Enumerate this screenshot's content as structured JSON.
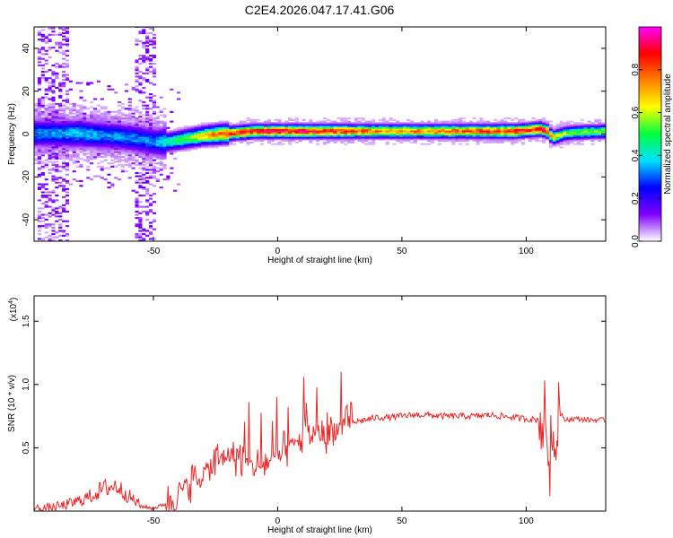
{
  "title": "C2E4.2026.047.17.41.G06",
  "chart_data": [
    {
      "type": "heatmap",
      "title": "C2E4.2026.047.17.41.G06",
      "xlabel": "Height of straight line (km)",
      "ylabel": "Frequency (Hz)",
      "xlim": [
        -98,
        132
      ],
      "ylim": [
        -50,
        50
      ],
      "x_ticks": [
        -50,
        0,
        50,
        100
      ],
      "y_ticks": [
        -40,
        -20,
        0,
        20,
        40
      ],
      "colorbar": {
        "label": "Normalized spectral amplitude",
        "range": [
          0.0,
          1.0
        ],
        "ticks": [
          "0.0",
          "0.2",
          "0.4",
          "0.6",
          "0.8"
        ],
        "colors": [
          "#ffffff",
          "#8000ff",
          "#0000ff",
          "#00e0ff",
          "#00ff40",
          "#ffff00",
          "#ff8000",
          "#ff0000",
          "#ff00ff"
        ]
      },
      "ridge": {
        "x": [
          -98,
          -90,
          -80,
          -70,
          -60,
          -50,
          -45,
          -40,
          -35,
          -30,
          -25,
          -20,
          -15,
          -10,
          -5,
          0,
          10,
          20,
          40,
          60,
          80,
          90,
          95,
          100,
          105,
          108,
          110,
          115,
          120,
          132
        ],
        "frequency": [
          0,
          0,
          0,
          -1,
          -2,
          -4,
          -4,
          -3,
          -2,
          -1,
          -0.5,
          0,
          0.5,
          1,
          1,
          1,
          1,
          1,
          1,
          1,
          1,
          1,
          1,
          1.5,
          2,
          1,
          -2,
          0,
          0.5,
          1
        ],
        "amplitude": [
          0.35,
          0.35,
          0.4,
          0.35,
          0.35,
          0.35,
          0.45,
          0.55,
          0.6,
          0.7,
          0.8,
          0.9,
          0.95,
          0.9,
          0.95,
          0.95,
          0.95,
          0.9,
          0.8,
          0.8,
          0.85,
          0.9,
          0.95,
          0.85,
          0.95,
          0.9,
          0.7,
          0.6,
          0.6,
          0.6
        ]
      }
    },
    {
      "type": "line",
      "xlabel": "Height of straight line (km)",
      "ylabel": "SNR (10 * v/v)",
      "y_multiplier": "(x10",
      "y_multiplier_exp": "4",
      "xlim": [
        -98,
        132
      ],
      "ylim": [
        0,
        1.7
      ],
      "x_ticks": [
        -50,
        0,
        50,
        100
      ],
      "y_ticks": [
        0.5,
        1.0,
        1.5
      ],
      "color": "#e8282a",
      "series": [
        {
          "x": [
            -98,
            -95,
            -90,
            -85,
            -80,
            -75,
            -70,
            -65,
            -60,
            -55,
            -50,
            -45,
            -40,
            -35,
            -30,
            -25,
            -20,
            -15,
            -10,
            -5,
            0,
            5,
            10,
            15,
            20,
            25,
            30,
            35,
            40,
            45,
            50,
            55,
            60,
            65,
            70,
            75,
            80,
            85,
            90,
            95,
            100,
            105,
            108,
            110,
            112,
            115,
            120,
            125,
            132
          ],
          "y": [
            0.02,
            0.02,
            0.03,
            0.05,
            0.08,
            0.12,
            0.18,
            0.2,
            0.12,
            0.04,
            0.02,
            0.06,
            0.15,
            0.22,
            0.3,
            0.38,
            0.45,
            0.42,
            0.35,
            0.38,
            0.42,
            0.5,
            0.58,
            0.62,
            0.62,
            0.66,
            0.7,
            0.72,
            0.74,
            0.74,
            0.75,
            0.76,
            0.76,
            0.75,
            0.75,
            0.75,
            0.75,
            0.76,
            0.75,
            0.74,
            0.73,
            0.72,
            0.7,
            0.4,
            0.9,
            0.72,
            0.73,
            0.72,
            0.72
          ]
        }
      ]
    }
  ]
}
